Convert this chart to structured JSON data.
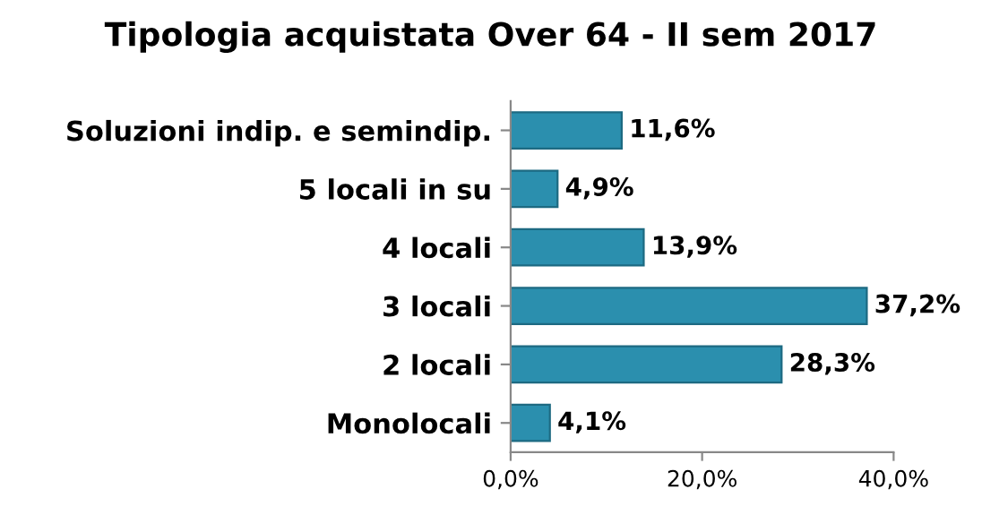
{
  "chart_data": {
    "type": "bar",
    "orientation": "horizontal",
    "title": "Tipologia acquistata Over 64 - II sem 2017",
    "categories": [
      "Soluzioni indip. e semindip.",
      "5 locali in su",
      "4 locali",
      "3 locali",
      "2 locali",
      "Monolocali"
    ],
    "values": [
      11.6,
      4.9,
      13.9,
      37.2,
      28.3,
      4.1
    ],
    "value_labels": [
      "11,6%",
      "4,9%",
      "13,9%",
      "37,2%",
      "28,3%",
      "4,1%"
    ],
    "color": "#2b8fae",
    "xlim": [
      0,
      40
    ],
    "xticks": [
      {
        "value": 0,
        "label": "0,0%"
      },
      {
        "value": 20,
        "label": "20,0%"
      },
      {
        "value": 40,
        "label": "40,0%"
      }
    ],
    "grid": false
  }
}
